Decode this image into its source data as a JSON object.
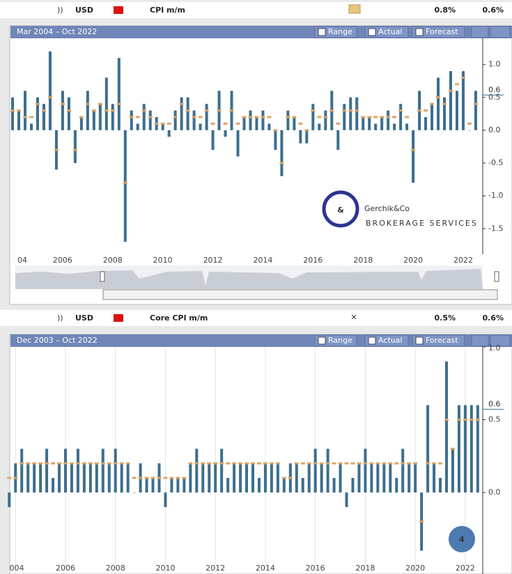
{
  "ui": {
    "panels": [
      {
        "currency": "USD",
        "indicator": "CPI m/m",
        "actual": "0.8%",
        "forecast": "0.6%",
        "range": "Mar 2004 – Oct 2022"
      },
      {
        "currency": "USD",
        "indicator": "Core CPI m/m",
        "actual": "0.5%",
        "forecast": "0.6%",
        "range": "Dec 2003 – Oct 2022"
      }
    ],
    "buttons": [
      "Range",
      "Actual",
      "Forecast"
    ],
    "logo": {
      "name": "Gerchik&Co",
      "tagline": "BROKERAGE SERVICES"
    },
    "badge": "4"
  },
  "chart_data": [
    {
      "type": "bar",
      "grid": false,
      "x": [
        2004,
        2004.25,
        2004.5,
        2004.75,
        2005,
        2005.25,
        2005.5,
        2005.75,
        2006,
        2006.25,
        2006.5,
        2006.75,
        2007,
        2007.25,
        2007.5,
        2007.75,
        2008,
        2008.25,
        2008.5,
        2008.75,
        2009,
        2009.25,
        2009.5,
        2009.75,
        2010,
        2010.25,
        2010.5,
        2010.75,
        2011,
        2011.25,
        2011.5,
        2011.75,
        2012,
        2012.25,
        2012.5,
        2012.75,
        2013,
        2013.25,
        2013.5,
        2013.75,
        2014,
        2014.25,
        2014.5,
        2014.75,
        2015,
        2015.25,
        2015.5,
        2015.75,
        2016,
        2016.25,
        2016.5,
        2016.75,
        2017,
        2017.25,
        2017.5,
        2017.75,
        2018,
        2018.25,
        2018.5,
        2018.75,
        2019,
        2019.25,
        2019.5,
        2019.75,
        2020,
        2020.25,
        2020.5,
        2020.75,
        2021,
        2021.25,
        2021.5,
        2021.75,
        2022,
        2022.25,
        2022.5
      ],
      "series": [
        {
          "name": "Actual",
          "color": "#3c6e8f",
          "values": [
            0.5,
            0.3,
            0.6,
            0.1,
            0.5,
            0.4,
            1.2,
            -0.6,
            0.6,
            0.5,
            -0.5,
            0.2,
            0.6,
            0.3,
            0.4,
            0.8,
            0.4,
            1.1,
            -1.7,
            0.3,
            0.1,
            0.4,
            0.3,
            0.2,
            0.1,
            -0.1,
            0.3,
            0.5,
            0.5,
            0.3,
            0.1,
            0.4,
            -0.3,
            0.6,
            -0.1,
            0.6,
            -0.4,
            0.2,
            0.3,
            0.2,
            0.3,
            0.1,
            -0.3,
            -0.7,
            0.3,
            0.2,
            -0.2,
            -0.2,
            0.4,
            0.1,
            0.3,
            0.6,
            -0.3,
            0.4,
            0.5,
            0.5,
            0.2,
            0.2,
            0.1,
            0.2,
            0.3,
            0.1,
            0.4,
            0.1,
            -0.8,
            0.6,
            0.2,
            0.4,
            0.8,
            0.5,
            0.9,
            0.6,
            0.9,
            0.0,
            0.6
          ]
        },
        {
          "name": "Forecast",
          "color": "#d9a66b",
          "values": [
            0.3,
            0.3,
            0.2,
            0.2,
            0.4,
            0.3,
            0.5,
            -0.3,
            0.4,
            0.3,
            -0.3,
            0.2,
            0.4,
            0.3,
            0.4,
            0.3,
            0.3,
            0.4,
            -0.8,
            0.2,
            0.2,
            0.3,
            0.2,
            0.1,
            0.1,
            0.1,
            0.2,
            0.4,
            0.3,
            0.2,
            0.2,
            0.3,
            0.1,
            0.3,
            0.1,
            0.3,
            0.1,
            0.2,
            0.2,
            0.2,
            0.2,
            0.2,
            0.0,
            -0.5,
            0.2,
            0.2,
            0.1,
            0.0,
            0.3,
            0.2,
            0.2,
            0.3,
            0.1,
            0.3,
            0.3,
            0.3,
            0.2,
            0.2,
            0.2,
            0.2,
            0.2,
            0.2,
            0.3,
            0.2,
            -0.3,
            0.3,
            0.3,
            0.4,
            0.5,
            0.4,
            0.6,
            0.7,
            0.8,
            0.1,
            0.4
          ]
        }
      ],
      "xlim": [
        2004.11,
        2022.78
      ],
      "ylim": [
        -1.89,
        1.4
      ],
      "xticks": [
        {
          "value": 2004,
          "label": "04"
        },
        2006,
        2008,
        2010,
        2012,
        2014,
        2016,
        2018,
        2020,
        2022
      ],
      "yticks": [
        {
          "value": 1,
          "label": "1.0"
        },
        {
          "value": 0.5,
          "label": "0.5"
        },
        {
          "value": 0,
          "label": "0.0"
        },
        {
          "value": -0.5,
          "label": "-0.5"
        },
        {
          "value": -1,
          "label": "-1.0"
        },
        {
          "value": -1.5,
          "label": "-1.5"
        }
      ],
      "last_value": 0.6
    },
    {
      "type": "bar",
      "grid": true,
      "x": [
        2003.75,
        2004,
        2004.25,
        2004.5,
        2004.75,
        2005,
        2005.25,
        2005.5,
        2005.75,
        2006,
        2006.25,
        2006.5,
        2006.75,
        2007,
        2007.25,
        2007.5,
        2007.75,
        2008,
        2008.25,
        2008.5,
        2008.75,
        2009,
        2009.25,
        2009.5,
        2009.75,
        2010,
        2010.25,
        2010.5,
        2010.75,
        2011,
        2011.25,
        2011.5,
        2011.75,
        2012,
        2012.25,
        2012.5,
        2012.75,
        2013,
        2013.25,
        2013.5,
        2013.75,
        2014,
        2014.25,
        2014.5,
        2014.75,
        2015,
        2015.25,
        2015.5,
        2015.75,
        2016,
        2016.25,
        2016.5,
        2016.75,
        2017,
        2017.25,
        2017.5,
        2017.75,
        2018,
        2018.25,
        2018.5,
        2018.75,
        2019,
        2019.25,
        2019.5,
        2019.75,
        2020,
        2020.25,
        2020.5,
        2020.75,
        2021,
        2021.25,
        2021.5,
        2021.75,
        2022,
        2022.25,
        2022.5
      ],
      "series": [
        {
          "name": "Actual",
          "color": "#3c6e8f",
          "values": [
            -0.1,
            0.2,
            0.3,
            0.2,
            0.2,
            0.2,
            0.3,
            0.1,
            0.2,
            0.3,
            0.2,
            0.3,
            0.2,
            0.2,
            0.2,
            0.3,
            0.2,
            0.3,
            0.2,
            0.2,
            0.0,
            0.2,
            0.1,
            0.1,
            0.2,
            -0.1,
            0.1,
            0.1,
            0.1,
            0.2,
            0.3,
            0.2,
            0.2,
            0.2,
            0.3,
            0.1,
            0.2,
            0.2,
            0.2,
            0.2,
            0.1,
            0.2,
            0.2,
            0.2,
            0.1,
            0.2,
            0.2,
            0.1,
            0.2,
            0.3,
            0.2,
            0.3,
            0.1,
            0.2,
            -0.1,
            0.1,
            0.2,
            0.3,
            0.2,
            0.2,
            0.2,
            0.2,
            0.1,
            0.3,
            0.2,
            0.2,
            -0.4,
            0.6,
            0.2,
            0.1,
            0.9,
            0.3,
            0.6,
            0.6,
            0.6,
            0.6
          ]
        },
        {
          "name": "Forecast",
          "color": "#d9a66b",
          "values": [
            0.1,
            0.1,
            0.2,
            0.2,
            0.2,
            0.2,
            0.2,
            0.2,
            0.2,
            0.2,
            0.2,
            0.2,
            0.2,
            0.2,
            0.2,
            0.2,
            0.2,
            0.2,
            0.2,
            0.2,
            0.1,
            0.1,
            0.1,
            0.1,
            0.1,
            0.1,
            0.1,
            0.1,
            0.1,
            0.2,
            0.2,
            0.2,
            0.2,
            0.2,
            0.2,
            0.2,
            0.2,
            0.2,
            0.2,
            0.2,
            0.2,
            0.2,
            0.2,
            0.2,
            0.1,
            0.1,
            0.2,
            0.2,
            0.2,
            0.2,
            0.2,
            0.2,
            0.2,
            0.2,
            0.2,
            0.2,
            0.2,
            0.2,
            0.2,
            0.2,
            0.2,
            0.2,
            0.2,
            0.2,
            0.2,
            0.2,
            -0.2,
            0.2,
            0.2,
            0.2,
            0.5,
            0.3,
            0.5,
            0.5,
            0.5,
            0.5
          ]
        }
      ],
      "xlim": [
        2003.77,
        2022.7
      ],
      "ylim": [
        -0.56,
        1.0
      ],
      "xticks": [
        {
          "value": 2004,
          "label": "004"
        },
        2006,
        2008,
        2010,
        2012,
        2014,
        2016,
        2018,
        2020,
        2022
      ],
      "yticks": [
        {
          "value": 1,
          "label": "1.0"
        },
        {
          "value": 0.5,
          "label": "0.5"
        },
        {
          "value": 0,
          "label": "0.0"
        }
      ],
      "last_value": 0.6
    }
  ]
}
